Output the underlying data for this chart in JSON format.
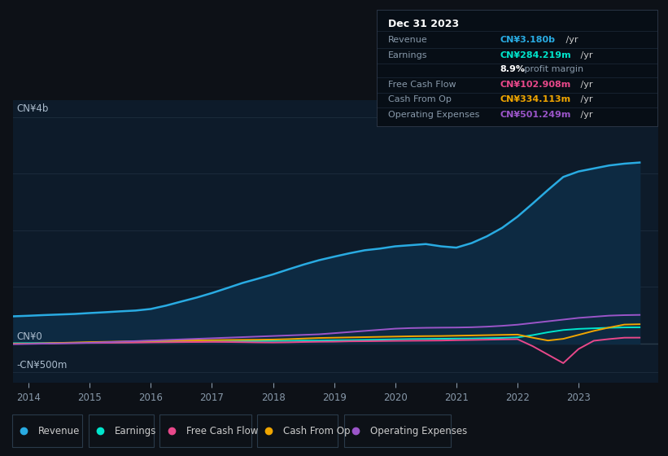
{
  "bg_color": "#0d1117",
  "plot_bg_color": "#0d1b2a",
  "grid_color": "#1a2535",
  "years": [
    2013.75,
    2014.0,
    2014.25,
    2014.5,
    2014.75,
    2015.0,
    2015.25,
    2015.5,
    2015.75,
    2016.0,
    2016.25,
    2016.5,
    2016.75,
    2017.0,
    2017.25,
    2017.5,
    2017.75,
    2018.0,
    2018.25,
    2018.5,
    2018.75,
    2019.0,
    2019.25,
    2019.5,
    2019.75,
    2020.0,
    2020.25,
    2020.5,
    2020.75,
    2021.0,
    2021.25,
    2021.5,
    2021.75,
    2022.0,
    2022.25,
    2022.5,
    2022.75,
    2023.0,
    2023.25,
    2023.5,
    2023.75,
    2024.0
  ],
  "revenue": [
    480,
    490,
    502,
    512,
    522,
    538,
    552,
    568,
    582,
    610,
    670,
    742,
    812,
    892,
    980,
    1070,
    1145,
    1222,
    1310,
    1395,
    1472,
    1535,
    1595,
    1648,
    1678,
    1718,
    1738,
    1758,
    1718,
    1695,
    1775,
    1895,
    2045,
    2242,
    2475,
    2715,
    2945,
    3042,
    3095,
    3148,
    3180,
    3200
  ],
  "earnings": [
    5,
    6,
    7,
    9,
    12,
    15,
    17,
    19,
    22,
    25,
    27,
    30,
    32,
    35,
    37,
    40,
    42,
    45,
    47,
    50,
    52,
    56,
    58,
    63,
    68,
    73,
    78,
    80,
    83,
    86,
    88,
    93,
    98,
    108,
    148,
    198,
    238,
    258,
    268,
    278,
    284,
    286
  ],
  "free_cash_flow": [
    -5,
    -3,
    0,
    4,
    7,
    9,
    11,
    14,
    16,
    19,
    21,
    24,
    26,
    28,
    26,
    23,
    19,
    17,
    20,
    26,
    30,
    32,
    38,
    40,
    43,
    46,
    48,
    50,
    52,
    58,
    62,
    67,
    72,
    76,
    -48,
    -198,
    -348,
    -98,
    48,
    78,
    102,
    103
  ],
  "cash_from_op": [
    -5,
    -3,
    2,
    10,
    17,
    24,
    29,
    34,
    39,
    44,
    49,
    54,
    56,
    59,
    62,
    64,
    66,
    70,
    77,
    87,
    97,
    102,
    107,
    112,
    117,
    122,
    127,
    130,
    132,
    137,
    142,
    147,
    152,
    157,
    102,
    52,
    82,
    152,
    222,
    282,
    334,
    340
  ],
  "operating_expenses": [
    -12,
    -8,
    -3,
    2,
    7,
    12,
    22,
    32,
    42,
    52,
    62,
    72,
    82,
    92,
    102,
    112,
    122,
    132,
    142,
    152,
    162,
    182,
    202,
    222,
    242,
    262,
    272,
    277,
    280,
    282,
    287,
    297,
    312,
    332,
    362,
    392,
    422,
    452,
    472,
    492,
    501,
    505
  ],
  "revenue_color": "#29abe2",
  "revenue_fill": "#0d2a42",
  "earnings_color": "#00e5cc",
  "free_cash_flow_color": "#e8488a",
  "cash_from_op_color": "#f0a500",
  "operating_expenses_color": "#9b55c9",
  "x_ticks": [
    2014,
    2015,
    2016,
    2017,
    2018,
    2019,
    2020,
    2021,
    2022,
    2023
  ],
  "ylim_min": -700,
  "ylim_max": 4300,
  "xlim_min": 2013.75,
  "xlim_max": 2024.3,
  "tooltip_title": "Dec 31 2023",
  "tooltip_revenue_label": "Revenue",
  "tooltip_revenue_val": "CN¥3.180b",
  "tooltip_revenue_suffix": " /yr",
  "tooltip_earnings_label": "Earnings",
  "tooltip_earnings_val": "CN¥284.219m",
  "tooltip_earnings_suffix": " /yr",
  "tooltip_margin_val": "8.9%",
  "tooltip_margin_suffix": " profit margin",
  "tooltip_fcf_label": "Free Cash Flow",
  "tooltip_fcf_val": "CN¥102.908m",
  "tooltip_fcf_suffix": " /yr",
  "tooltip_cop_label": "Cash From Op",
  "tooltip_cop_val": "CN¥334.113m",
  "tooltip_cop_suffix": " /yr",
  "tooltip_opex_label": "Operating Expenses",
  "tooltip_opex_val": "CN¥501.249m",
  "tooltip_opex_suffix": " /yr",
  "legend_items": [
    "Revenue",
    "Earnings",
    "Free Cash Flow",
    "Cash From Op",
    "Operating Expenses"
  ],
  "legend_colors": [
    "#29abe2",
    "#00e5cc",
    "#e8488a",
    "#f0a500",
    "#9b55c9"
  ]
}
